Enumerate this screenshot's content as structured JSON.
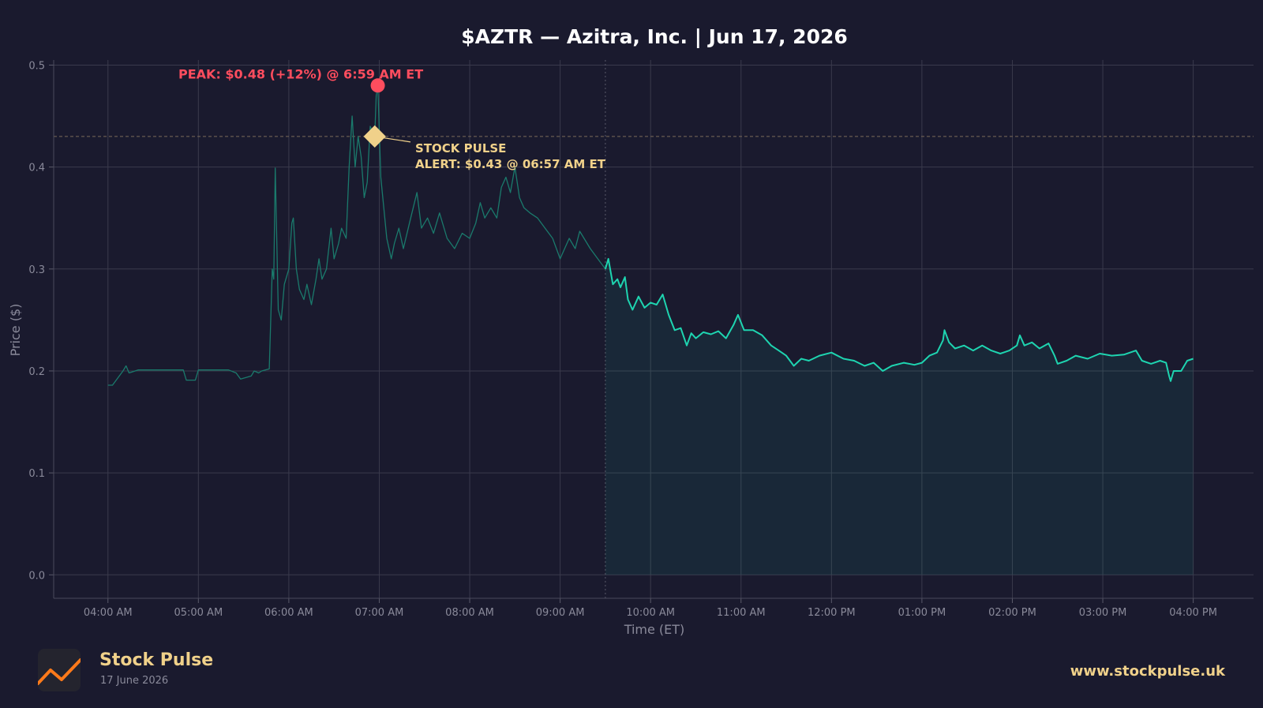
{
  "chart_data": {
    "type": "line",
    "title": "$AZTR — Azitra, Inc.  |  Jun 17, 2026",
    "xlabel": "Time (ET)",
    "ylabel": "Price ($)",
    "ylim": [
      -0.023,
      0.505
    ],
    "yticks": [
      0.0,
      0.1,
      0.2,
      0.3,
      0.4,
      0.5
    ],
    "ytick_labels": [
      "0.0",
      "0.1",
      "0.2",
      "0.3",
      "0.4",
      "0.5"
    ],
    "xticks": [
      "04:00 AM",
      "05:00 AM",
      "06:00 AM",
      "07:00 AM",
      "08:00 AM",
      "09:00 AM",
      "10:00 AM",
      "11:00 AM",
      "12:00 PM",
      "01:00 PM",
      "02:00 PM",
      "03:00 PM",
      "04:00 PM"
    ],
    "grid": true,
    "market_open": "09:30 AM",
    "series": [
      {
        "session": "pre-market",
        "color": "#1a7a6c",
        "points": [
          [
            "04:00 AM",
            0.186
          ],
          [
            "04:03 AM",
            0.186
          ],
          [
            "04:10 AM",
            0.2
          ],
          [
            "04:12 AM",
            0.205
          ],
          [
            "04:14 AM",
            0.198
          ],
          [
            "04:20 AM",
            0.201
          ],
          [
            "04:40 AM",
            0.201
          ],
          [
            "04:50 AM",
            0.201
          ],
          [
            "04:52 AM",
            0.191
          ],
          [
            "04:58 AM",
            0.191
          ],
          [
            "05:00 AM",
            0.201
          ],
          [
            "05:20 AM",
            0.201
          ],
          [
            "05:25 AM",
            0.198
          ],
          [
            "05:28 AM",
            0.192
          ],
          [
            "05:35 AM",
            0.195
          ],
          [
            "05:37 AM",
            0.2
          ],
          [
            "05:40 AM",
            0.198
          ],
          [
            "05:42 AM",
            0.2
          ],
          [
            "05:47 AM",
            0.202
          ],
          [
            "05:49 AM",
            0.3
          ],
          [
            "05:50 AM",
            0.29
          ],
          [
            "05:51 AM",
            0.399
          ],
          [
            "05:53 AM",
            0.26
          ],
          [
            "05:55 AM",
            0.25
          ],
          [
            "05:57 AM",
            0.285
          ],
          [
            "06:00 AM",
            0.3
          ],
          [
            "06:02 AM",
            0.345
          ],
          [
            "06:03 AM",
            0.35
          ],
          [
            "06:05 AM",
            0.3
          ],
          [
            "06:07 AM",
            0.28
          ],
          [
            "06:10 AM",
            0.27
          ],
          [
            "06:12 AM",
            0.285
          ],
          [
            "06:15 AM",
            0.265
          ],
          [
            "06:18 AM",
            0.29
          ],
          [
            "06:20 AM",
            0.31
          ],
          [
            "06:22 AM",
            0.29
          ],
          [
            "06:25 AM",
            0.3
          ],
          [
            "06:28 AM",
            0.34
          ],
          [
            "06:30 AM",
            0.31
          ],
          [
            "06:33 AM",
            0.325
          ],
          [
            "06:35 AM",
            0.34
          ],
          [
            "06:38 AM",
            0.33
          ],
          [
            "06:40 AM",
            0.4
          ],
          [
            "06:42 AM",
            0.45
          ],
          [
            "06:44 AM",
            0.4
          ],
          [
            "06:46 AM",
            0.43
          ],
          [
            "06:48 AM",
            0.41
          ],
          [
            "06:50 AM",
            0.37
          ],
          [
            "06:52 AM",
            0.385
          ],
          [
            "06:54 AM",
            0.44
          ],
          [
            "06:57 AM",
            0.43
          ],
          [
            "06:58 AM",
            0.47
          ],
          [
            "06:59 AM",
            0.48
          ],
          [
            "07:01 AM",
            0.39
          ],
          [
            "07:03 AM",
            0.36
          ],
          [
            "07:05 AM",
            0.33
          ],
          [
            "07:08 AM",
            0.31
          ],
          [
            "07:10 AM",
            0.325
          ],
          [
            "07:13 AM",
            0.34
          ],
          [
            "07:16 AM",
            0.32
          ],
          [
            "07:20 AM",
            0.345
          ],
          [
            "07:25 AM",
            0.375
          ],
          [
            "07:28 AM",
            0.34
          ],
          [
            "07:32 AM",
            0.35
          ],
          [
            "07:36 AM",
            0.335
          ],
          [
            "07:40 AM",
            0.355
          ],
          [
            "07:45 AM",
            0.33
          ],
          [
            "07:50 AM",
            0.32
          ],
          [
            "07:55 AM",
            0.335
          ],
          [
            "08:00 AM",
            0.33
          ],
          [
            "08:04 AM",
            0.345
          ],
          [
            "08:07 AM",
            0.365
          ],
          [
            "08:10 AM",
            0.35
          ],
          [
            "08:14 AM",
            0.36
          ],
          [
            "08:18 AM",
            0.35
          ],
          [
            "08:21 AM",
            0.38
          ],
          [
            "08:24 AM",
            0.39
          ],
          [
            "08:27 AM",
            0.375
          ],
          [
            "08:30 AM",
            0.4
          ],
          [
            "08:33 AM",
            0.37
          ],
          [
            "08:36 AM",
            0.36
          ],
          [
            "08:40 AM",
            0.355
          ],
          [
            "08:45 AM",
            0.35
          ],
          [
            "08:50 AM",
            0.34
          ],
          [
            "08:55 AM",
            0.33
          ],
          [
            "09:00 AM",
            0.31
          ],
          [
            "09:03 AM",
            0.32
          ],
          [
            "09:06 AM",
            0.33
          ],
          [
            "09:10 AM",
            0.32
          ],
          [
            "09:13 AM",
            0.337
          ],
          [
            "09:20 AM",
            0.32
          ],
          [
            "09:25 AM",
            0.31
          ],
          [
            "09:30 AM",
            0.3
          ]
        ]
      },
      {
        "session": "regular",
        "color": "#1ed4b0",
        "points": [
          [
            "09:30 AM",
            0.3
          ],
          [
            "09:32 AM",
            0.31
          ],
          [
            "09:35 AM",
            0.285
          ],
          [
            "09:38 AM",
            0.29
          ],
          [
            "09:40 AM",
            0.282
          ],
          [
            "09:43 AM",
            0.292
          ],
          [
            "09:45 AM",
            0.27
          ],
          [
            "09:48 AM",
            0.26
          ],
          [
            "09:52 AM",
            0.273
          ],
          [
            "09:56 AM",
            0.262
          ],
          [
            "10:00 AM",
            0.267
          ],
          [
            "10:04 AM",
            0.265
          ],
          [
            "10:08 AM",
            0.275
          ],
          [
            "10:12 AM",
            0.255
          ],
          [
            "10:16 AM",
            0.24
          ],
          [
            "10:20 AM",
            0.242
          ],
          [
            "10:24 AM",
            0.225
          ],
          [
            "10:27 AM",
            0.237
          ],
          [
            "10:30 AM",
            0.232
          ],
          [
            "10:35 AM",
            0.238
          ],
          [
            "10:40 AM",
            0.236
          ],
          [
            "10:45 AM",
            0.239
          ],
          [
            "10:50 AM",
            0.232
          ],
          [
            "10:55 AM",
            0.245
          ],
          [
            "10:58 AM",
            0.255
          ],
          [
            "11:02 AM",
            0.24
          ],
          [
            "11:08 AM",
            0.24
          ],
          [
            "11:14 AM",
            0.235
          ],
          [
            "11:20 AM",
            0.225
          ],
          [
            "11:25 AM",
            0.22
          ],
          [
            "11:30 AM",
            0.215
          ],
          [
            "11:35 AM",
            0.205
          ],
          [
            "11:40 AM",
            0.212
          ],
          [
            "11:45 AM",
            0.21
          ],
          [
            "11:52 AM",
            0.215
          ],
          [
            "12:00 PM",
            0.218
          ],
          [
            "12:08 PM",
            0.212
          ],
          [
            "12:15 PM",
            0.21
          ],
          [
            "12:22 PM",
            0.205
          ],
          [
            "12:28 PM",
            0.208
          ],
          [
            "12:34 PM",
            0.2
          ],
          [
            "12:40 PM",
            0.205
          ],
          [
            "12:48 PM",
            0.208
          ],
          [
            "12:55 PM",
            0.206
          ],
          [
            "01:00 PM",
            0.208
          ],
          [
            "01:05 PM",
            0.215
          ],
          [
            "01:10 PM",
            0.218
          ],
          [
            "01:14 PM",
            0.23
          ],
          [
            "01:15 PM",
            0.24
          ],
          [
            "01:18 PM",
            0.228
          ],
          [
            "01:22 PM",
            0.222
          ],
          [
            "01:28 PM",
            0.225
          ],
          [
            "01:34 PM",
            0.22
          ],
          [
            "01:40 PM",
            0.225
          ],
          [
            "01:46 PM",
            0.22
          ],
          [
            "01:52 PM",
            0.217
          ],
          [
            "01:58 PM",
            0.22
          ],
          [
            "02:03 PM",
            0.225
          ],
          [
            "02:05 PM",
            0.235
          ],
          [
            "02:08 PM",
            0.225
          ],
          [
            "02:13 PM",
            0.228
          ],
          [
            "02:18 PM",
            0.222
          ],
          [
            "02:24 PM",
            0.227
          ],
          [
            "02:28 PM",
            0.215
          ],
          [
            "02:30 PM",
            0.207
          ],
          [
            "02:36 PM",
            0.21
          ],
          [
            "02:42 PM",
            0.215
          ],
          [
            "02:50 PM",
            0.212
          ],
          [
            "02:58 PM",
            0.217
          ],
          [
            "03:06 PM",
            0.215
          ],
          [
            "03:14 PM",
            0.216
          ],
          [
            "03:22 PM",
            0.22
          ],
          [
            "03:26 PM",
            0.21
          ],
          [
            "03:32 PM",
            0.207
          ],
          [
            "03:38 PM",
            0.21
          ],
          [
            "03:42 PM",
            0.208
          ],
          [
            "03:44 PM",
            0.195
          ],
          [
            "03:45 PM",
            0.19
          ],
          [
            "03:47 PM",
            0.2
          ],
          [
            "03:52 PM",
            0.2
          ],
          [
            "03:56 PM",
            0.21
          ],
          [
            "04:00 PM",
            0.212
          ]
        ]
      }
    ],
    "annotations": {
      "peak": {
        "label": "PEAK: $0.48 (+12%) @ 6:59 AM ET",
        "time": "06:59 AM",
        "value": 0.48,
        "color": "#ff4d5e"
      },
      "alert": {
        "label_line1": "STOCK PULSE",
        "label_line2": "ALERT: $0.43 @ 06:57 AM ET",
        "time": "06:57 AM",
        "value": 0.43,
        "color": "#f0d18a"
      }
    }
  },
  "footer": {
    "brand": "Stock Pulse",
    "date": "17 June 2026",
    "url": "www.stockpulse.uk"
  }
}
